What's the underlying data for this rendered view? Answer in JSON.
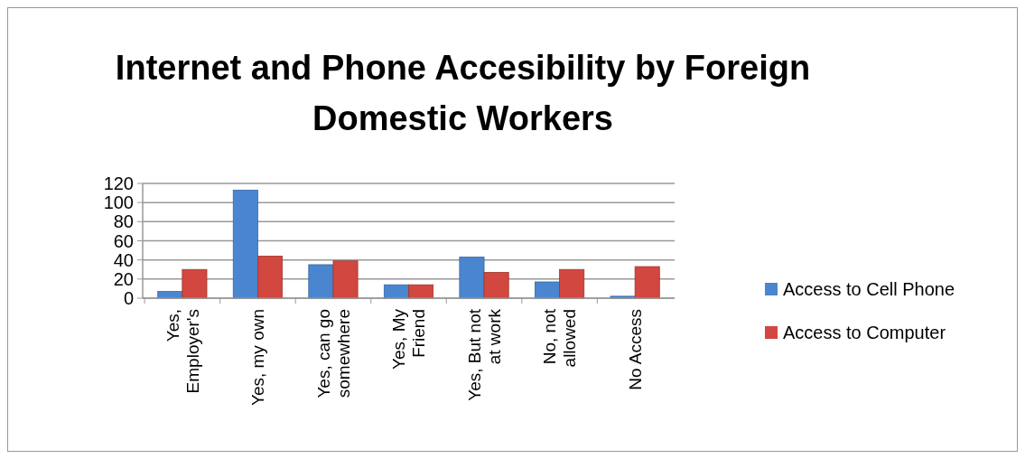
{
  "chart_data": {
    "type": "bar",
    "title": "Internet and Phone Accesibility by Foreign Domestic Workers",
    "categories": [
      "Yes, Employer's",
      "Yes, my own",
      "Yes, can go somewhere",
      "Yes, My Friend",
      "Yes, But not at work",
      "No, not allowed",
      "No Access"
    ],
    "series": [
      {
        "name": "Access to Cell Phone",
        "color": "#4a86d0",
        "values": [
          7,
          113,
          35,
          14,
          43,
          17,
          2
        ]
      },
      {
        "name": "Access to Computer",
        "color": "#d2473f",
        "values": [
          30,
          44,
          39,
          14,
          27,
          30,
          33
        ]
      }
    ],
    "ylim": [
      0,
      120
    ],
    "yticks": [
      0,
      20,
      40,
      60,
      80,
      100,
      120
    ],
    "grid": "y",
    "legend": "right"
  }
}
